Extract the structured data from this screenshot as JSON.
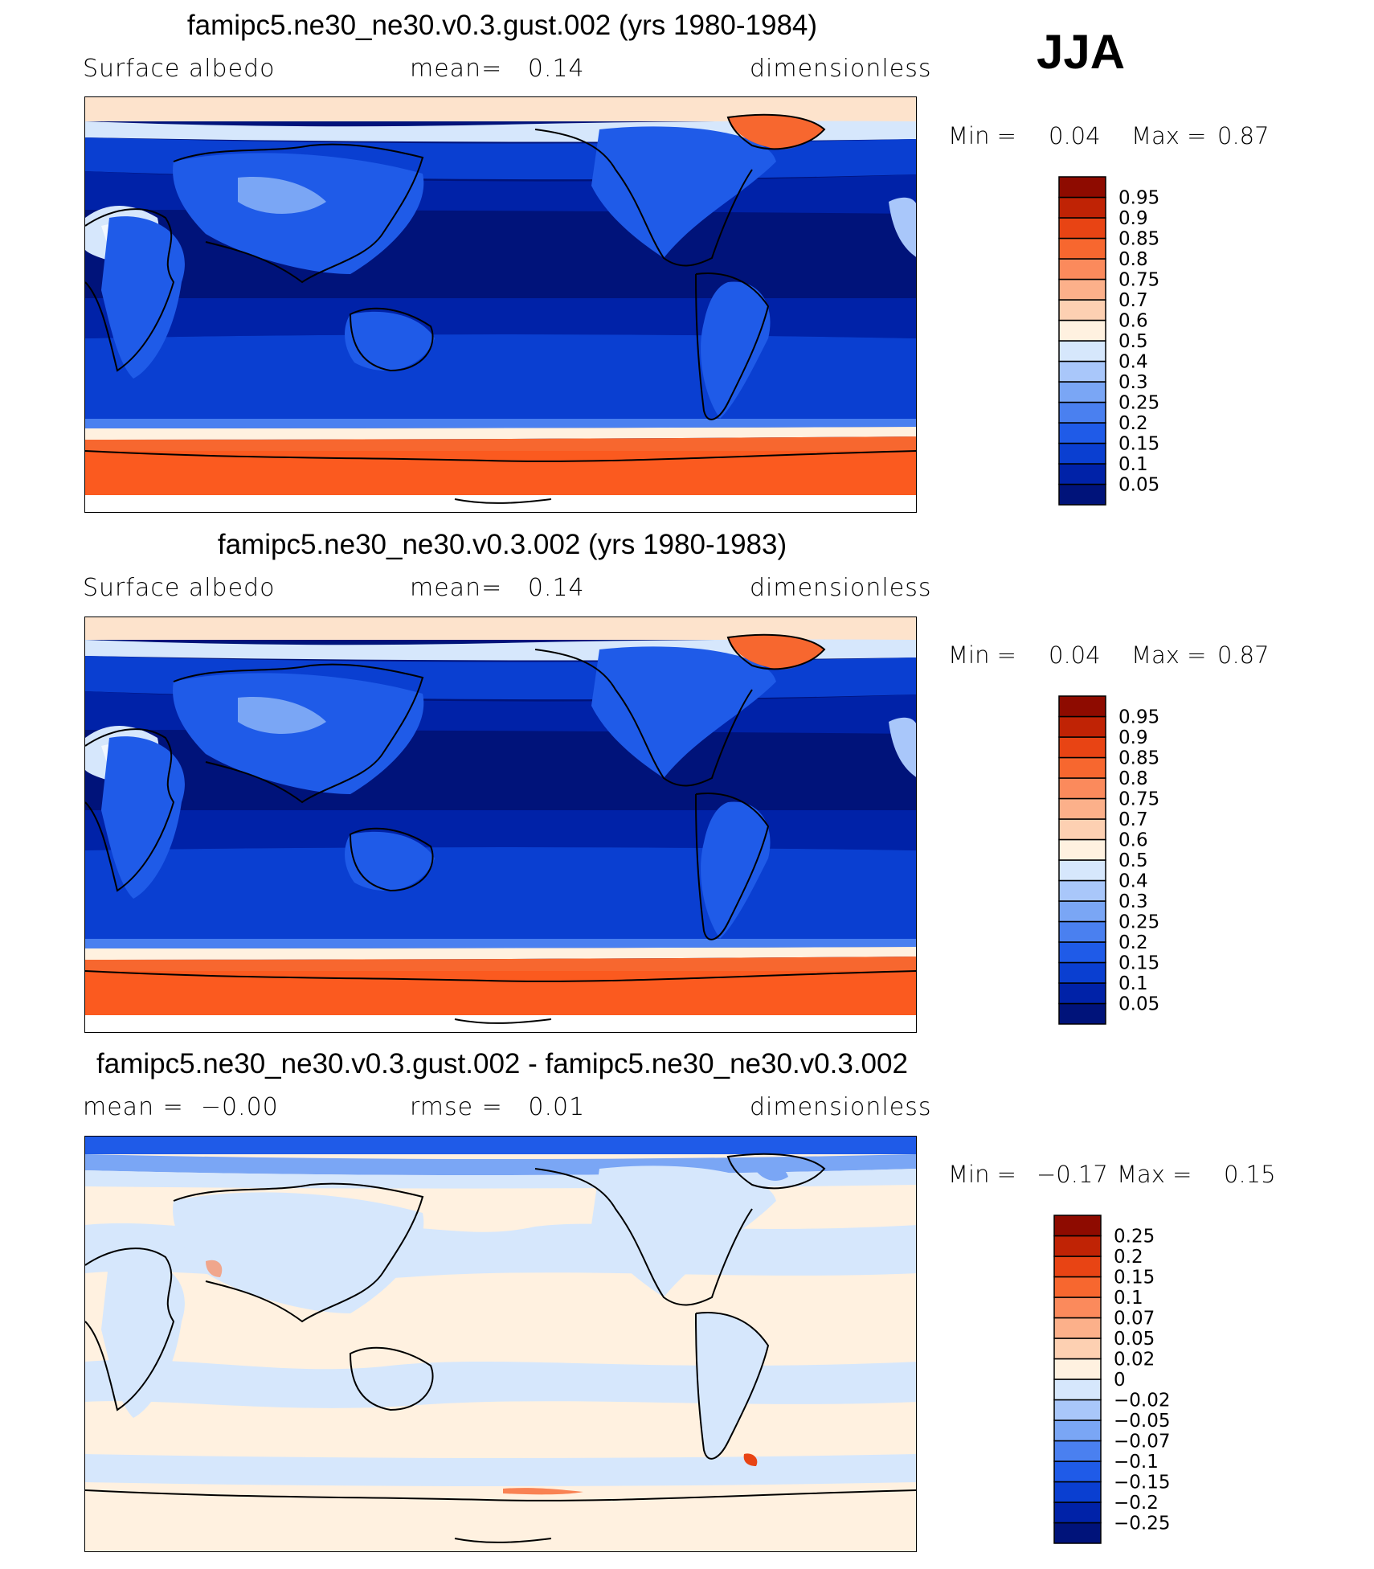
{
  "season": "JJA",
  "panels": [
    {
      "title": "famipc5.ne30_ne30.v0.3.gust.002 (yrs 1980-1984)",
      "left_label": "Surface albedo",
      "middle_label": "mean=   0.14",
      "right_label": "dimensionless",
      "min_label": "Min =",
      "min_value": "0.04",
      "max_label": "Max =",
      "max_value": "0.87",
      "colorbar": {
        "colors": [
          "#00137a",
          "#0022a8",
          "#0a3fd1",
          "#1f5be8",
          "#4a80f0",
          "#7aa6f5",
          "#a9c7fa",
          "#d6e7fc",
          "#fff1e0",
          "#fdd0b2",
          "#fcb08a",
          "#fb8a5c",
          "#f7672f",
          "#e84414",
          "#c02305",
          "#8e0b00"
        ],
        "labels": [
          "0.05",
          "0.1",
          "0.15",
          "0.2",
          "0.25",
          "0.3",
          "0.4",
          "0.5",
          "0.6",
          "0.7",
          "0.75",
          "0.8",
          "0.85",
          "0.9",
          "0.95"
        ]
      }
    },
    {
      "title": "famipc5.ne30_ne30.v0.3.002 (yrs 1980-1983)",
      "left_label": "Surface albedo",
      "middle_label": "mean=   0.14",
      "right_label": "dimensionless",
      "min_label": "Min =",
      "min_value": "0.04",
      "max_label": "Max =",
      "max_value": "0.87",
      "colorbar": {
        "colors": [
          "#00137a",
          "#0022a8",
          "#0a3fd1",
          "#1f5be8",
          "#4a80f0",
          "#7aa6f5",
          "#a9c7fa",
          "#d6e7fc",
          "#fff1e0",
          "#fdd0b2",
          "#fcb08a",
          "#fb8a5c",
          "#f7672f",
          "#e84414",
          "#c02305",
          "#8e0b00"
        ],
        "labels": [
          "0.05",
          "0.1",
          "0.15",
          "0.2",
          "0.25",
          "0.3",
          "0.4",
          "0.5",
          "0.6",
          "0.7",
          "0.75",
          "0.8",
          "0.85",
          "0.9",
          "0.95"
        ]
      }
    },
    {
      "title": "famipc5.ne30_ne30.v0.3.gust.002 - famipc5.ne30_ne30.v0.3.002",
      "left_label": "mean =  −0.00",
      "middle_label": "rmse =   0.01",
      "right_label": "dimensionless",
      "min_label": "Min =",
      "min_value": "−0.17",
      "max_label": "Max =",
      "max_value": "0.15",
      "colorbar": {
        "colors": [
          "#00137a",
          "#0022a8",
          "#0a3fd1",
          "#1f5be8",
          "#4a80f0",
          "#7aa6f5",
          "#a9c7fa",
          "#d6e7fc",
          "#fff1e0",
          "#fdd0b2",
          "#fcb08a",
          "#fb8a5c",
          "#f7672f",
          "#e84414",
          "#c02305",
          "#8e0b00"
        ],
        "labels": [
          "−0.25",
          "−0.2",
          "−0.15",
          "−0.1",
          "−0.07",
          "−0.05",
          "−0.02",
          "0",
          "0.02",
          "0.05",
          "0.07",
          "0.1",
          "0.15",
          "0.2",
          "0.25"
        ]
      }
    }
  ]
}
